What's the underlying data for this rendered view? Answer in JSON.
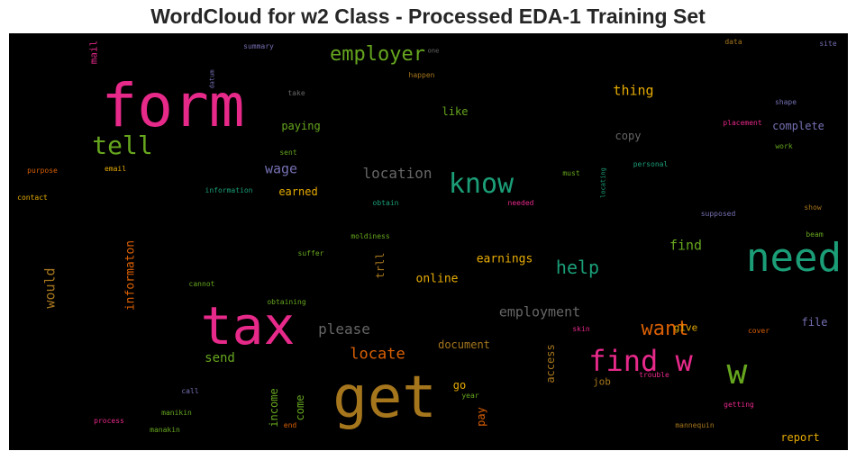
{
  "title": "WordCloud for w2 Class - Processed EDA-1 Training Set",
  "words": [
    {
      "text": "form",
      "color": "#e7298a",
      "weight": 66,
      "vertical": false
    },
    {
      "text": "tax",
      "color": "#e7298a",
      "weight": 58,
      "vertical": false
    },
    {
      "text": "get",
      "color": "#a6761d",
      "weight": 64,
      "vertical": false
    },
    {
      "text": "need",
      "color": "#1b9e77",
      "weight": 44,
      "vertical": false
    },
    {
      "text": "w",
      "color": "#66a61e",
      "weight": 38,
      "vertical": false
    },
    {
      "text": "find w",
      "color": "#e7298a",
      "weight": 32,
      "vertical": false
    },
    {
      "text": "know",
      "color": "#1b9e77",
      "weight": 30,
      "vertical": false
    },
    {
      "text": "tell",
      "color": "#66a61e",
      "weight": 28,
      "vertical": false
    },
    {
      "text": "employer",
      "color": "#66a61e",
      "weight": 22,
      "vertical": false
    },
    {
      "text": "want",
      "color": "#d95f02",
      "weight": 22,
      "vertical": false
    },
    {
      "text": "help",
      "color": "#1b9e77",
      "weight": 20,
      "vertical": false
    },
    {
      "text": "locate",
      "color": "#d95f02",
      "weight": 17,
      "vertical": false
    },
    {
      "text": "location",
      "color": "#666666",
      "weight": 16,
      "vertical": false
    },
    {
      "text": "please",
      "color": "#666666",
      "weight": 16,
      "vertical": false
    },
    {
      "text": "employment",
      "color": "#666666",
      "weight": 15,
      "vertical": false
    },
    {
      "text": "thing",
      "color": "#e6ab02",
      "weight": 15,
      "vertical": false
    },
    {
      "text": "find",
      "color": "#66a61e",
      "weight": 15,
      "vertical": false
    },
    {
      "text": "wage",
      "color": "#7570b3",
      "weight": 15,
      "vertical": false
    },
    {
      "text": "would",
      "color": "#a6761d",
      "weight": 15,
      "vertical": true
    },
    {
      "text": "informaton",
      "color": "#d95f02",
      "weight": 13,
      "vertical": true
    },
    {
      "text": "send",
      "color": "#66a61e",
      "weight": 14,
      "vertical": false
    },
    {
      "text": "earnings",
      "color": "#e6ab02",
      "weight": 13,
      "vertical": false
    },
    {
      "text": "online",
      "color": "#e6ab02",
      "weight": 13,
      "vertical": false
    },
    {
      "text": "document",
      "color": "#a6761d",
      "weight": 12,
      "vertical": false
    },
    {
      "text": "paying",
      "color": "#66a61e",
      "weight": 12,
      "vertical": false
    },
    {
      "text": "earned",
      "color": "#e6ab02",
      "weight": 12,
      "vertical": false
    },
    {
      "text": "copy",
      "color": "#666666",
      "weight": 12,
      "vertical": false
    },
    {
      "text": "like",
      "color": "#66a61e",
      "weight": 12,
      "vertical": false
    },
    {
      "text": "complete",
      "color": "#7570b3",
      "weight": 12,
      "vertical": false
    },
    {
      "text": "file",
      "color": "#7570b3",
      "weight": 12,
      "vertical": false
    },
    {
      "text": "report",
      "color": "#e6ab02",
      "weight": 12,
      "vertical": false
    },
    {
      "text": "trll",
      "color": "#a6761d",
      "weight": 12,
      "vertical": true
    },
    {
      "text": "income",
      "color": "#66a61e",
      "weight": 12,
      "vertical": true
    },
    {
      "text": "come",
      "color": "#66a61e",
      "weight": 12,
      "vertical": true
    },
    {
      "text": "pay",
      "color": "#d95f02",
      "weight": 12,
      "vertical": true
    },
    {
      "text": "access",
      "color": "#a6761d",
      "weight": 12,
      "vertical": true
    },
    {
      "text": "go",
      "color": "#e6ab02",
      "weight": 12,
      "vertical": false
    },
    {
      "text": "give",
      "color": "#e6ab02",
      "weight": 11,
      "vertical": false
    },
    {
      "text": "job",
      "color": "#a6761d",
      "weight": 11,
      "vertical": false
    },
    {
      "text": "mail",
      "color": "#e7298a",
      "weight": 11,
      "vertical": true
    },
    {
      "text": "summary",
      "color": "#7570b3",
      "weight": 8,
      "vertical": false
    },
    {
      "text": "one",
      "color": "#666666",
      "weight": 7,
      "vertical": false
    },
    {
      "text": "data",
      "color": "#a6761d",
      "weight": 8,
      "vertical": false
    },
    {
      "text": "site",
      "color": "#7570b3",
      "weight": 8,
      "vertical": false
    },
    {
      "text": "datum",
      "color": "#7570b3",
      "weight": 7,
      "vertical": true
    },
    {
      "text": "happen",
      "color": "#a6761d",
      "weight": 8,
      "vertical": false
    },
    {
      "text": "take",
      "color": "#666666",
      "weight": 8,
      "vertical": false
    },
    {
      "text": "shape",
      "color": "#7570b3",
      "weight": 8,
      "vertical": false
    },
    {
      "text": "placement",
      "color": "#e7298a",
      "weight": 8,
      "vertical": false
    },
    {
      "text": "sent",
      "color": "#66a61e",
      "weight": 8,
      "vertical": false
    },
    {
      "text": "work",
      "color": "#66a61e",
      "weight": 8,
      "vertical": false
    },
    {
      "text": "purpose",
      "color": "#d95f02",
      "weight": 8,
      "vertical": false
    },
    {
      "text": "email",
      "color": "#e6ab02",
      "weight": 8,
      "vertical": false
    },
    {
      "text": "must",
      "color": "#66a61e",
      "weight": 8,
      "vertical": false
    },
    {
      "text": "locating",
      "color": "#1b9e77",
      "weight": 7,
      "vertical": true
    },
    {
      "text": "personal",
      "color": "#1b9e77",
      "weight": 8,
      "vertical": false
    },
    {
      "text": "information",
      "color": "#1b9e77",
      "weight": 8,
      "vertical": false
    },
    {
      "text": "contact",
      "color": "#e6ab02",
      "weight": 8,
      "vertical": false
    },
    {
      "text": "obtain",
      "color": "#1b9e77",
      "weight": 8,
      "vertical": false
    },
    {
      "text": "needed",
      "color": "#e7298a",
      "weight": 8,
      "vertical": false
    },
    {
      "text": "show",
      "color": "#a6761d",
      "weight": 8,
      "vertical": false
    },
    {
      "text": "supposed",
      "color": "#7570b3",
      "weight": 8,
      "vertical": false
    },
    {
      "text": "moldiness",
      "color": "#66a61e",
      "weight": 8,
      "vertical": false
    },
    {
      "text": "beam",
      "color": "#66a61e",
      "weight": 8,
      "vertical": false
    },
    {
      "text": "suffer",
      "color": "#66a61e",
      "weight": 8,
      "vertical": false
    },
    {
      "text": "cannot",
      "color": "#66a61e",
      "weight": 8,
      "vertical": false
    },
    {
      "text": "obtaining",
      "color": "#66a61e",
      "weight": 8,
      "vertical": false
    },
    {
      "text": "skin",
      "color": "#e7298a",
      "weight": 8,
      "vertical": false
    },
    {
      "text": "cover",
      "color": "#d95f02",
      "weight": 8,
      "vertical": false
    },
    {
      "text": "trouble",
      "color": "#e7298a",
      "weight": 8,
      "vertical": false
    },
    {
      "text": "call",
      "color": "#7570b3",
      "weight": 8,
      "vertical": false
    },
    {
      "text": "year",
      "color": "#66a61e",
      "weight": 8,
      "vertical": false
    },
    {
      "text": "getting",
      "color": "#e7298a",
      "weight": 8,
      "vertical": false
    },
    {
      "text": "manikin",
      "color": "#66a61e",
      "weight": 8,
      "vertical": false
    },
    {
      "text": "process",
      "color": "#e7298a",
      "weight": 8,
      "vertical": false
    },
    {
      "text": "end",
      "color": "#d95f02",
      "weight": 8,
      "vertical": false
    },
    {
      "text": "manakin",
      "color": "#66a61e",
      "weight": 8,
      "vertical": false
    },
    {
      "text": "mannequin",
      "color": "#a6761d",
      "weight": 8,
      "vertical": false
    }
  ]
}
